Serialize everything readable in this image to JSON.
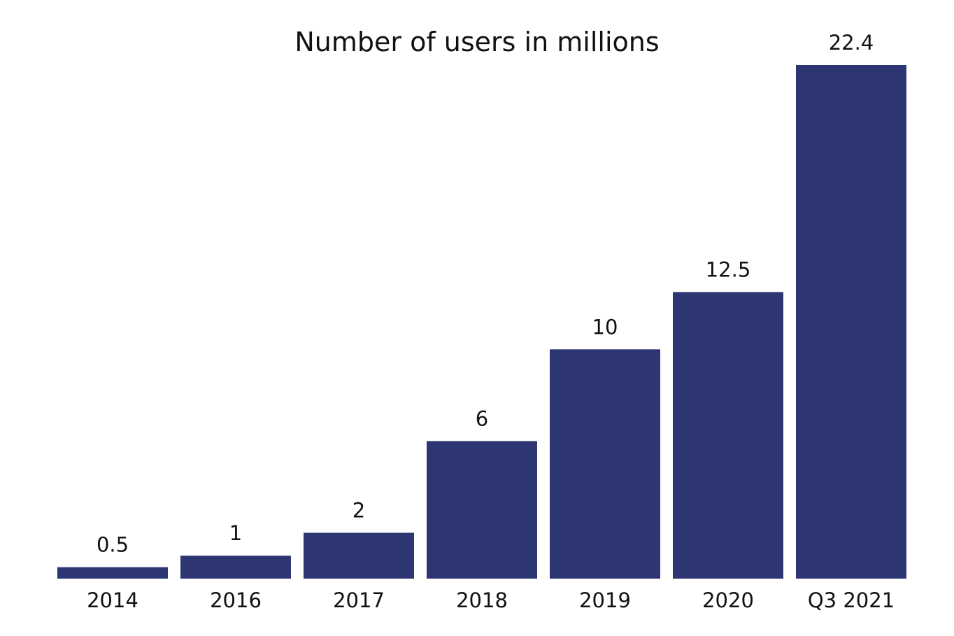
{
  "chart_data": {
    "type": "bar",
    "title": "Number of users in millions",
    "xlabel": "",
    "ylabel": "",
    "categories": [
      "2014",
      "2016",
      "2017",
      "2018",
      "2019",
      "2020",
      "Q3 2021"
    ],
    "values": [
      0.5,
      1,
      2,
      6,
      10,
      12.5,
      22.4
    ],
    "value_labels": [
      "0.5",
      "1",
      "2",
      "6",
      "10",
      "12.5",
      "22.4"
    ],
    "ylim": [
      0,
      22.4
    ],
    "grid": false,
    "legend": "none",
    "colors": {
      "bar": "#2d3673",
      "text": "#111111",
      "background": "#ffffff"
    }
  }
}
